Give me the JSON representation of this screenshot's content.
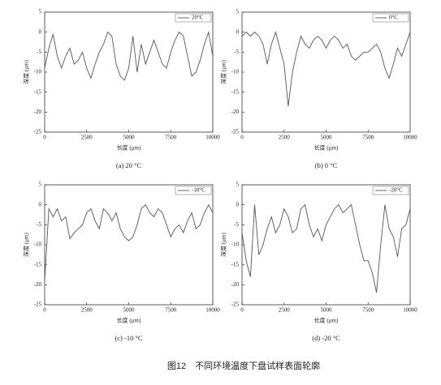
{
  "caption": "图12　不同环境温度下盘试样表面轮廓",
  "chart_data": [
    {
      "type": "line",
      "caption": "(a) 20 °C",
      "xlabel": "长度 (μm)",
      "ylabel": "深度 (μm)",
      "x": [
        0,
        250,
        500,
        750,
        1000,
        1250,
        1500,
        1750,
        2000,
        2250,
        2500,
        2750,
        3000,
        3250,
        3500,
        3750,
        4000,
        4250,
        4500,
        4750,
        5000,
        5250,
        5500,
        5750,
        6000,
        6250,
        6500,
        6750,
        7000,
        7250,
        7500,
        7750,
        8000,
        8250,
        8500,
        8750,
        9000,
        9250,
        9500,
        9750,
        10000
      ],
      "series": [
        {
          "name": "20°C",
          "color": "#555555",
          "values": [
            -9,
            -4,
            -0.5,
            -6,
            -9,
            -6,
            -4,
            -8,
            -7,
            -5,
            -9,
            -11.5,
            -8,
            -5,
            -3,
            0,
            -1,
            -8,
            -11,
            -12,
            -9,
            -1,
            -10,
            -3,
            -8,
            -5,
            -2,
            -5,
            -8,
            -9,
            -5,
            -2,
            0,
            -1,
            -6,
            -11,
            -10,
            -7,
            -3,
            0,
            -6
          ]
        }
      ],
      "xlim": [
        0,
        10000
      ],
      "xticks": [
        0,
        2500,
        5000,
        7500,
        10000
      ],
      "ylim": [
        -25,
        5
      ],
      "yticks": [
        5,
        0,
        -5,
        -10,
        -15,
        -20,
        -25
      ],
      "legend": "upper right"
    },
    {
      "type": "line",
      "caption": "(b) 0 °C",
      "xlabel": "长度 (μm)",
      "ylabel": "深度 (μm)",
      "x": [
        0,
        250,
        500,
        750,
        1000,
        1250,
        1500,
        1750,
        2000,
        2250,
        2500,
        2750,
        3000,
        3250,
        3500,
        3750,
        4000,
        4250,
        4500,
        4750,
        5000,
        5250,
        5500,
        5750,
        6000,
        6250,
        6500,
        6750,
        7000,
        7250,
        7500,
        7750,
        8000,
        8250,
        8500,
        8750,
        9000,
        9250,
        9500,
        9750,
        10000
      ],
      "series": [
        {
          "name": "0°C",
          "color": "#555555",
          "values": [
            -1,
            0,
            -1,
            0,
            -1,
            -3,
            -8,
            -3,
            0,
            -4,
            -8,
            -18.5,
            -10,
            -5,
            -1,
            -3,
            -4,
            -2,
            -1,
            -2,
            -4,
            -2,
            -1,
            -2,
            -4,
            -3,
            -6,
            -7,
            -6,
            -5,
            -5,
            -4,
            -3,
            -5,
            -9,
            -11.5,
            -8,
            -4,
            -6,
            -3,
            0
          ]
        }
      ],
      "xlim": [
        0,
        10000
      ],
      "xticks": [
        0,
        2500,
        5000,
        7500,
        10000
      ],
      "ylim": [
        -25,
        5
      ],
      "yticks": [
        5,
        0,
        -5,
        -10,
        -15,
        -20,
        -25
      ],
      "legend": "upper right"
    },
    {
      "type": "line",
      "caption": "(c) -10 °C",
      "xlabel": "长度 (μm)",
      "ylabel": "深度 (μm)",
      "x": [
        0,
        250,
        500,
        750,
        1000,
        1250,
        1500,
        1750,
        2000,
        2250,
        2500,
        2750,
        3000,
        3250,
        3500,
        3750,
        4000,
        4250,
        4500,
        4750,
        5000,
        5250,
        5500,
        5750,
        6000,
        6250,
        6500,
        6750,
        7000,
        7250,
        7500,
        7750,
        8000,
        8250,
        8500,
        8750,
        9000,
        9250,
        9500,
        9750,
        10000
      ],
      "series": [
        {
          "name": "-10°C",
          "color": "#555555",
          "values": [
            -19,
            -1,
            -3,
            -1,
            -4,
            -3,
            -8.5,
            -7,
            -6,
            -5,
            -2,
            -1,
            -4,
            -6,
            -1,
            -2,
            -4,
            -2,
            -6,
            -8,
            -9,
            -8,
            -5,
            -1,
            0,
            -2,
            -3,
            -1,
            -2,
            -5,
            -8,
            -6,
            -5,
            -7,
            -4,
            -2,
            -6,
            -5,
            -2,
            0,
            -2
          ]
        }
      ],
      "xlim": [
        0,
        10000
      ],
      "xticks": [
        0,
        2500,
        5000,
        7500,
        10000
      ],
      "ylim": [
        -25,
        5
      ],
      "yticks": [
        5,
        0,
        -5,
        -10,
        -15,
        -20,
        -25
      ],
      "legend": "upper right"
    },
    {
      "type": "line",
      "caption": "(d) -20 °C",
      "xlabel": "长度 (μm)",
      "ylabel": "深度 (μm)",
      "x": [
        0,
        250,
        500,
        750,
        1000,
        1250,
        1500,
        1750,
        2000,
        2250,
        2500,
        2750,
        3000,
        3250,
        3500,
        3750,
        4000,
        4250,
        4500,
        4750,
        5000,
        5250,
        5500,
        5750,
        6000,
        6250,
        6500,
        6750,
        7000,
        7250,
        7500,
        7750,
        8000,
        8250,
        8500,
        8750,
        9000,
        9250,
        9500,
        9750,
        10000
      ],
      "series": [
        {
          "name": "-20°C",
          "color": "#555555",
          "values": [
            -7,
            -14,
            -18,
            0,
            -12.5,
            -10,
            -6,
            -3,
            -7,
            -5,
            -1,
            -3,
            -7,
            -6,
            -1,
            0,
            -5,
            -8,
            -6,
            -9,
            -5,
            -3,
            -1,
            0,
            -2,
            -1,
            0,
            -5,
            -10,
            -14,
            -14,
            -17,
            -22,
            -10,
            0,
            -6,
            -8,
            -13,
            -6,
            -5,
            -1
          ]
        }
      ],
      "xlim": [
        0,
        10000
      ],
      "xticks": [
        0,
        2500,
        5000,
        7500,
        10000
      ],
      "ylim": [
        -25,
        5
      ],
      "yticks": [
        5,
        0,
        -5,
        -10,
        -15,
        -20,
        -25
      ],
      "legend": "upper right"
    }
  ]
}
